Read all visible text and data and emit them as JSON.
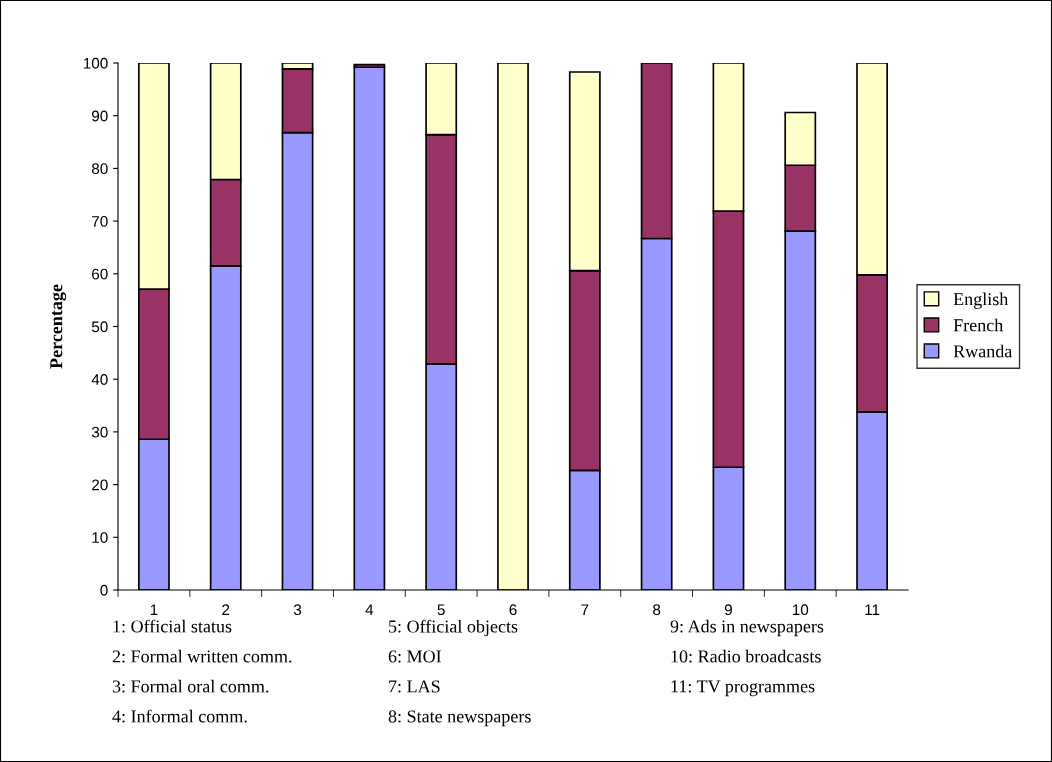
{
  "chart_data": {
    "type": "bar",
    "stacked": true,
    "ylabel": "Percentage",
    "categories": [
      "1",
      "2",
      "3",
      "4",
      "5",
      "6",
      "7",
      "8",
      "9",
      "10",
      "11"
    ],
    "series": [
      {
        "name": "Rwanda",
        "color": "#9999ff",
        "values": [
          28.6,
          61.5,
          86.8,
          99.2,
          42.9,
          null,
          22.7,
          66.7,
          23.3,
          68.1,
          33.8
        ]
      },
      {
        "name": "French",
        "color": "#993366",
        "values": [
          28.5,
          16.4,
          12.1,
          0.5,
          43.5,
          null,
          37.9,
          33.3,
          48.6,
          12.5,
          26.0
        ]
      },
      {
        "name": "English",
        "color": "#ffffcc",
        "values": [
          42.9,
          22.1,
          1.1,
          null,
          13.6,
          100,
          37.7,
          null,
          28.1,
          10.0,
          40.2
        ]
      }
    ],
    "ylim": [
      0,
      100
    ],
    "yticks": [
      0,
      10,
      20,
      30,
      40,
      50,
      60,
      70,
      80,
      90,
      100
    ],
    "grid": false,
    "legend": "right",
    "annotations": [
      "1: Official status",
      "2: Formal written comm.",
      "3: Formal oral comm.",
      "4: Informal comm.",
      "5: Official objects",
      "6: MOI",
      "7: LAS",
      "8: State newspapers",
      "9: Ads in newspapers",
      "10: Radio broadcasts",
      "11: TV programmes"
    ]
  }
}
